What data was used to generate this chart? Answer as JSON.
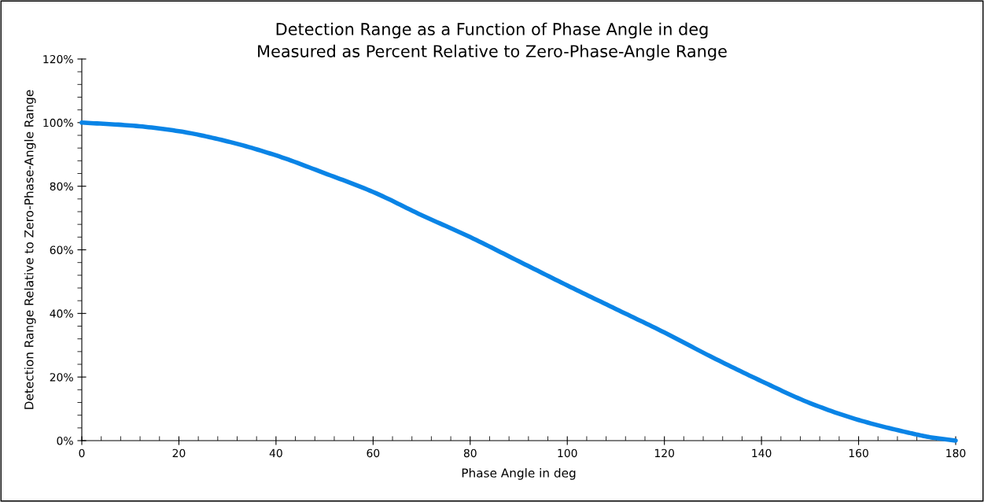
{
  "chart_data": {
    "type": "line",
    "title": "Detection Range as a Function of Phase Angle in deg\nMeasured as Percent Relative to Zero-Phase-Angle Range",
    "xlabel": "Phase Angle in deg",
    "ylabel": "Detection Range Relative to Zero-Phase-Angle Range",
    "x": [
      0,
      10,
      20,
      30,
      40,
      50,
      60,
      70,
      80,
      90,
      100,
      110,
      120,
      130,
      140,
      150,
      160,
      170,
      175,
      180
    ],
    "series": [
      {
        "color": "#0a84e6",
        "values": [
          100,
          99.1,
          97.3,
          94.1,
          89.7,
          84.1,
          78.2,
          70.9,
          64.0,
          56.4,
          48.8,
          41.4,
          34.0,
          26.1,
          18.7,
          11.8,
          6.5,
          2.6,
          1.0,
          0
        ]
      }
    ],
    "xlim": [
      0,
      180
    ],
    "xticks": [
      0,
      20,
      40,
      60,
      80,
      100,
      120,
      140,
      160,
      180
    ],
    "ylim": [
      0,
      120
    ],
    "yticks": [
      {
        "value": 0,
        "label": "0%"
      },
      {
        "value": 20,
        "label": "20%"
      },
      {
        "value": 40,
        "label": "40%"
      },
      {
        "value": 60,
        "label": "60%"
      },
      {
        "value": 80,
        "label": "80%"
      },
      {
        "value": 100,
        "label": "100%"
      },
      {
        "value": 120,
        "label": "120%"
      }
    ],
    "grid": false,
    "marker": "none",
    "line_style": "solid"
  }
}
